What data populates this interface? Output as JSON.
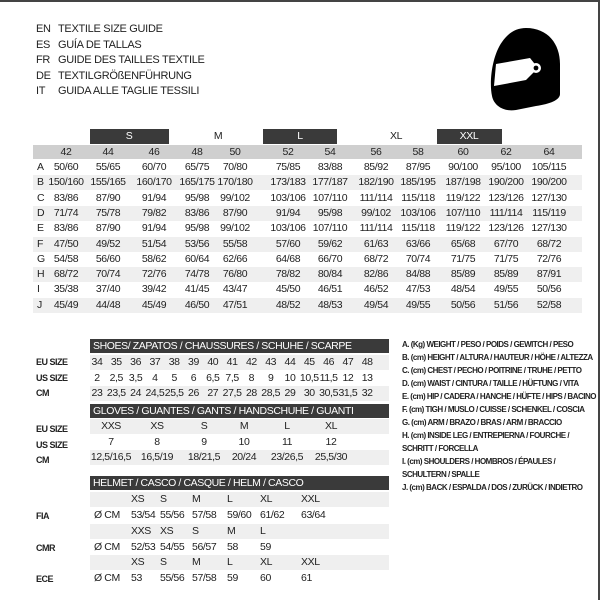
{
  "header": {
    "titles": [
      {
        "lang": "EN",
        "text": "TEXTILE SIZE GUIDE"
      },
      {
        "lang": "ES",
        "text": "GUÍA DE TALLAS"
      },
      {
        "lang": "FR",
        "text": "GUIDE DES TAILLES TEXTILE"
      },
      {
        "lang": "DE",
        "text": "TEXTILGRÖßENFÜHRUNG"
      },
      {
        "lang": "IT",
        "text": "GUIDA ALLE TAGLIE TESSILI"
      }
    ],
    "icon": "helmet-icon"
  },
  "textile": {
    "size_groups": [
      "S",
      "M",
      "L",
      "XL",
      "XXL"
    ],
    "columns": [
      "42",
      "44",
      "46",
      "48",
      "50",
      "52",
      "54",
      "56",
      "58",
      "60",
      "62",
      "64"
    ],
    "rows": [
      {
        "label": "A",
        "values": [
          "50/60",
          "55/65",
          "60/70",
          "65/75",
          "70/80",
          "75/85",
          "83/88",
          "85/92",
          "87/95",
          "90/100",
          "95/100",
          "105/115"
        ]
      },
      {
        "label": "B",
        "values": [
          "150/160",
          "155/165",
          "160/170",
          "165/175",
          "170/180",
          "173/183",
          "177/187",
          "182/190",
          "185/195",
          "187/198",
          "190/200",
          "190/200"
        ]
      },
      {
        "label": "C",
        "values": [
          "83/86",
          "87/90",
          "91/94",
          "95/98",
          "99/102",
          "103/106",
          "107/110",
          "111/114",
          "115/118",
          "119/122",
          "123/126",
          "127/130"
        ]
      },
      {
        "label": "D",
        "values": [
          "71/74",
          "75/78",
          "79/82",
          "83/86",
          "87/90",
          "91/94",
          "95/98",
          "99/102",
          "103/106",
          "107/110",
          "111/114",
          "115/119"
        ]
      },
      {
        "label": "E",
        "values": [
          "83/86",
          "87/90",
          "91/94",
          "95/98",
          "99/102",
          "103/106",
          "107/110",
          "111/114",
          "115/118",
          "119/122",
          "123/126",
          "127/130"
        ]
      },
      {
        "label": "F",
        "values": [
          "47/50",
          "49/52",
          "51/54",
          "53/56",
          "55/58",
          "57/60",
          "59/62",
          "61/63",
          "63/66",
          "65/68",
          "67/70",
          "68/72"
        ]
      },
      {
        "label": "G",
        "values": [
          "54/58",
          "56/60",
          "58/62",
          "60/64",
          "62/66",
          "64/68",
          "66/70",
          "68/72",
          "70/74",
          "71/75",
          "71/75",
          "72/76"
        ]
      },
      {
        "label": "H",
        "values": [
          "68/72",
          "70/74",
          "72/76",
          "74/78",
          "76/80",
          "78/82",
          "80/84",
          "82/86",
          "84/88",
          "85/89",
          "85/89",
          "87/91"
        ]
      },
      {
        "label": "I",
        "values": [
          "35/38",
          "37/40",
          "39/42",
          "41/45",
          "43/47",
          "45/50",
          "46/51",
          "46/52",
          "47/53",
          "48/54",
          "49/55",
          "50/56"
        ]
      },
      {
        "label": "J",
        "values": [
          "45/49",
          "44/48",
          "45/49",
          "46/50",
          "47/51",
          "48/52",
          "48/53",
          "49/54",
          "49/55",
          "50/56",
          "51/56",
          "52/58"
        ]
      }
    ]
  },
  "shoes": {
    "title": "SHOES/ ZAPATOS / CHAUSSURES / SCHUHE / SCARPE",
    "rows": [
      {
        "label": "EU SIZE",
        "values": [
          "34",
          "35",
          "36",
          "37",
          "38",
          "39",
          "40",
          "41",
          "42",
          "43",
          "44",
          "45",
          "46",
          "47",
          "48"
        ]
      },
      {
        "label": "US SIZE",
        "values": [
          "2",
          "2,5",
          "3,5",
          "4",
          "5",
          "6",
          "6,5",
          "7,5",
          "8",
          "9",
          "10",
          "10,5",
          "11,5",
          "12",
          "13"
        ]
      },
      {
        "label": "CM",
        "values": [
          "23",
          "23,5",
          "24",
          "24,5",
          "25,5",
          "26",
          "27",
          "27,5",
          "28",
          "28,5",
          "29",
          "30",
          "30,5",
          "31,5",
          "32"
        ]
      }
    ]
  },
  "gloves": {
    "title": "GLOVES / GUANTES / GANTS / HANDSCHUHE / GUANTI",
    "rows": [
      {
        "label": "EU SIZE",
        "values": [
          "XXS",
          "XS",
          "S",
          "M",
          "L",
          "XL"
        ]
      },
      {
        "label": "US SIZE",
        "values": [
          "7",
          "8",
          "9",
          "10",
          "11",
          "12"
        ]
      },
      {
        "label": "CM",
        "values": [
          "12,5/16,5",
          "16,5/19",
          "18/21,5",
          "20/24",
          "23/26,5",
          "25,5/30"
        ]
      }
    ]
  },
  "helmet": {
    "title": "HELMET / CASCO / CASQUE / HELM / CASCO",
    "blocks": [
      {
        "label": "FIA",
        "unit": "Ø CM",
        "sizes": [
          "XS",
          "S",
          "M",
          "L",
          "XL",
          "XXL"
        ],
        "values": [
          "53/54",
          "55/56",
          "57/58",
          "59/60",
          "61/62",
          "63/64"
        ]
      },
      {
        "label": "CMR",
        "unit": "Ø CM",
        "sizes": [
          "XXS",
          "XS",
          "S",
          "M",
          "L"
        ],
        "values": [
          "52/53",
          "54/55",
          "56/57",
          "58",
          "59"
        ]
      },
      {
        "label": "ECE",
        "unit": "Ø CM",
        "sizes": [
          "XS",
          "S",
          "M",
          "L",
          "XL",
          "XXL"
        ],
        "values": [
          "53",
          "55/56",
          "57/58",
          "59",
          "60",
          "61"
        ]
      }
    ]
  },
  "legend": [
    "A. (Kg) WEIGHT / PESO / POIDS / GEWITCH / PESO",
    "B. (cm) HEIGHT / ALTURA / HAUTEUR / HÖHE / ALTEZZA",
    "C. (cm) CHEST / PECHO / POITRINE / TRUHE / PETTO",
    "D. (cm) WAIST / CINTURA / TAILLE / HÜFTUNG / VITA",
    "E. (cm) HIP / CADERA / HANCHE / HÜFTE / HIPS /  BACINO",
    "F.  (cm) TIGH / MUSLO / CUISSE / SCHENKEL / COSCIA",
    "G. (cm) ARM  / BRAZO / BRAS / ARM / BRACCIO",
    "H. (cm) INSIDE LEG / ENTREPIERNA / FOURCHE /",
    "SCHRITT / FORCELLA",
    "I.  (cm) SHOULDERS / HOMBROS / ÉPAULES /",
    "SCHULTERN / SPALLE",
    "J. (cm) BACK / ESPALDA / DOS / ZURÜCK / INDIETRO"
  ],
  "colors": {
    "dark_bar": "#3a3a3a",
    "header_row": "#cfcfcf",
    "stripe": "#efefef"
  }
}
